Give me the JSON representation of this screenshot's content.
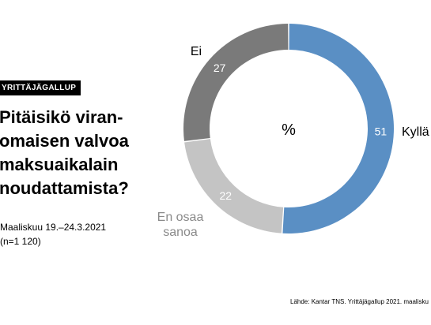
{
  "badge": "YRITTÄJÄGALLUP",
  "title": "Pitäisikö viran-\nomaisen valvoa\nmaksuaikalain\nnoudattamista?",
  "subtitle": "Maaliskuu 19.–24.3.2021\n(n=1 120)",
  "source": "Lähde: Kantar TNS. Yrittäjägallup 2021. maalisku",
  "chart_data": {
    "type": "pie",
    "donut": true,
    "center_label": "%",
    "slices": [
      {
        "label": "Kyllä",
        "value": 51,
        "color": "#5a8fc4",
        "label_color": "#000000"
      },
      {
        "label": "En osaa\nsanoa",
        "value": 22,
        "color": "#c4c4c4",
        "label_color": "#8a8a8a"
      },
      {
        "label": "Ei",
        "value": 27,
        "color": "#7a7a7a",
        "label_color": "#000000"
      }
    ]
  }
}
